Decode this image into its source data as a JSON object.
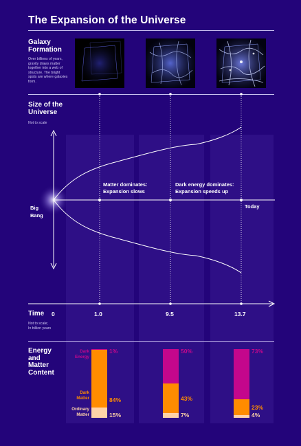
{
  "title": "The Expansion of the Universe",
  "galaxy": {
    "heading_line1": "Galaxy",
    "heading_line2": "Formation",
    "description": "Over billions of years, gravity draws matter together into a web of structure. The bright spots are where galaxies form."
  },
  "size": {
    "heading_line1": "Size of the",
    "heading_line2": "Universe",
    "note": "Not to scale",
    "big_bang_line1": "Big",
    "big_bang_line2": "Bang",
    "matter_line1": "Matter dominates:",
    "matter_line2": "Expansion slows",
    "dark_line1": "Dark energy dominates:",
    "dark_line2": "Expansion speeds up",
    "today": "Today"
  },
  "time": {
    "heading": "Time",
    "note_line1": "Not to scale;",
    "note_line2": "In billion years",
    "ticks": [
      "0",
      "1.0",
      "9.5",
      "13.7"
    ]
  },
  "energy": {
    "heading_line1": "Energy",
    "heading_line2": "and",
    "heading_line3": "Matter",
    "heading_line4": "Content",
    "dark_energy_line1": "Dark",
    "dark_energy_line2": "Energy",
    "dark_matter_line1": "Dark",
    "dark_matter_line2": "Matter",
    "ordinary_line1": "Ordinary",
    "ordinary_line2": "Matter",
    "colors": {
      "dark_energy": "#c4078c",
      "dark_matter": "#ff8c00",
      "ordinary": "#ffd3a8"
    }
  },
  "chart_data": {
    "type": "bar",
    "stacked": true,
    "categories": [
      "1.0",
      "9.5",
      "13.7"
    ],
    "series": [
      {
        "name": "Ordinary Matter",
        "values": [
          15,
          7,
          4
        ],
        "labels": [
          "15%",
          "7%",
          "4%"
        ]
      },
      {
        "name": "Dark Matter",
        "values": [
          84,
          43,
          23
        ],
        "labels": [
          "84%",
          "43%",
          "23%"
        ]
      },
      {
        "name": "Dark Energy",
        "values": [
          1,
          50,
          73
        ],
        "labels": [
          "1%",
          "50%",
          "73%"
        ]
      }
    ],
    "ylim": [
      0,
      100
    ]
  }
}
